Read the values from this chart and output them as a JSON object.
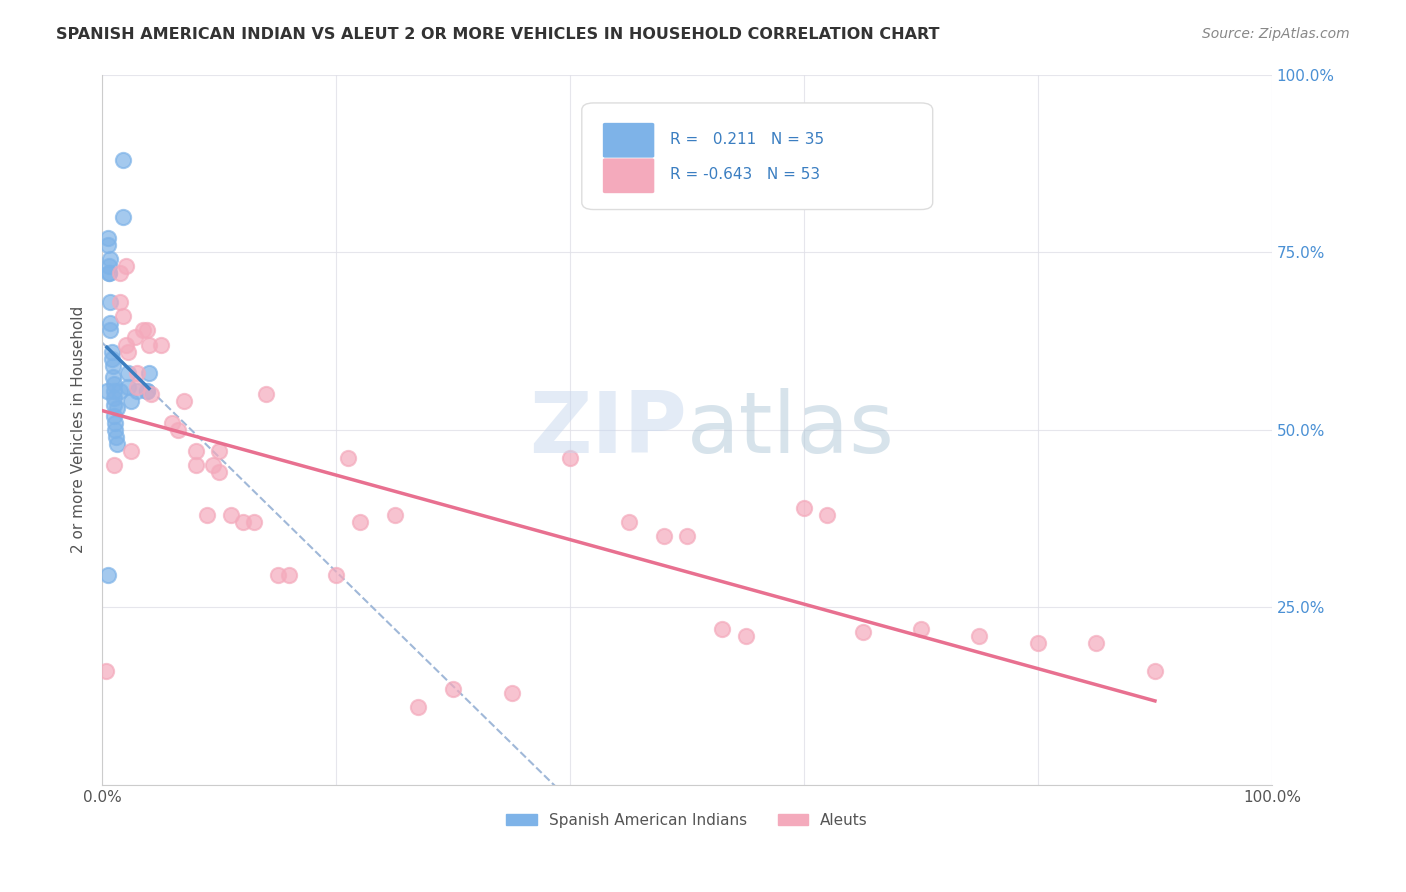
{
  "title": "SPANISH AMERICAN INDIAN VS ALEUT 2 OR MORE VEHICLES IN HOUSEHOLD CORRELATION CHART",
  "source": "Source: ZipAtlas.com",
  "xlabel_bottom": "",
  "ylabel": "2 or more Vehicles in Household",
  "xlim": [
    0.0,
    1.0
  ],
  "ylim": [
    0.0,
    1.0
  ],
  "x_ticks": [
    0.0,
    0.2,
    0.4,
    0.6,
    0.8,
    1.0
  ],
  "x_tick_labels": [
    "0.0%",
    "",
    "",
    "",
    "",
    "100.0%"
  ],
  "y_tick_labels_right": [
    "100.0%",
    "75.0%",
    "50.0%",
    "25.0%",
    ""
  ],
  "watermark": "ZIPatlas",
  "legend_r1": "R =   0.211   N = 35",
  "legend_r2": "R = -0.643   N = 53",
  "blue_color": "#7EB3E8",
  "pink_color": "#F4AABC",
  "blue_line_color": "#3B7EC1",
  "pink_line_color": "#E87090",
  "dashed_line_color": "#A0B8D8",
  "background_color": "#FFFFFF",
  "grid_color": "#E0E0E8",
  "blue_R": 0.211,
  "blue_N": 35,
  "pink_R": -0.643,
  "pink_N": 53,
  "blue_points_x": [
    0.004,
    0.006,
    0.005,
    0.005,
    0.007,
    0.006,
    0.006,
    0.007,
    0.007,
    0.007,
    0.008,
    0.008,
    0.009,
    0.009,
    0.01,
    0.01,
    0.01,
    0.01,
    0.01,
    0.011,
    0.011,
    0.012,
    0.013,
    0.013,
    0.015,
    0.018,
    0.018,
    0.022,
    0.022,
    0.025,
    0.03,
    0.038,
    0.04,
    0.038,
    0.005
  ],
  "blue_points_y": [
    0.555,
    0.72,
    0.77,
    0.76,
    0.74,
    0.73,
    0.72,
    0.68,
    0.65,
    0.64,
    0.61,
    0.6,
    0.59,
    0.575,
    0.565,
    0.555,
    0.545,
    0.535,
    0.52,
    0.51,
    0.5,
    0.49,
    0.48,
    0.53,
    0.555,
    0.88,
    0.8,
    0.58,
    0.56,
    0.54,
    0.555,
    0.555,
    0.58,
    0.555,
    0.295
  ],
  "pink_points_x": [
    0.003,
    0.01,
    0.015,
    0.015,
    0.018,
    0.02,
    0.02,
    0.022,
    0.025,
    0.028,
    0.03,
    0.03,
    0.035,
    0.038,
    0.04,
    0.042,
    0.05,
    0.06,
    0.065,
    0.07,
    0.08,
    0.08,
    0.09,
    0.095,
    0.1,
    0.1,
    0.11,
    0.12,
    0.13,
    0.14,
    0.15,
    0.16,
    0.2,
    0.21,
    0.22,
    0.25,
    0.27,
    0.3,
    0.35,
    0.4,
    0.45,
    0.48,
    0.5,
    0.53,
    0.55,
    0.6,
    0.62,
    0.65,
    0.7,
    0.75,
    0.8,
    0.85,
    0.9
  ],
  "pink_points_y": [
    0.16,
    0.45,
    0.72,
    0.68,
    0.66,
    0.73,
    0.62,
    0.61,
    0.47,
    0.63,
    0.58,
    0.56,
    0.64,
    0.64,
    0.62,
    0.55,
    0.62,
    0.51,
    0.5,
    0.54,
    0.47,
    0.45,
    0.38,
    0.45,
    0.47,
    0.44,
    0.38,
    0.37,
    0.37,
    0.55,
    0.295,
    0.295,
    0.295,
    0.46,
    0.37,
    0.38,
    0.11,
    0.135,
    0.13,
    0.46,
    0.37,
    0.35,
    0.35,
    0.22,
    0.21,
    0.39,
    0.38,
    0.215,
    0.22,
    0.21,
    0.2,
    0.2,
    0.16
  ]
}
